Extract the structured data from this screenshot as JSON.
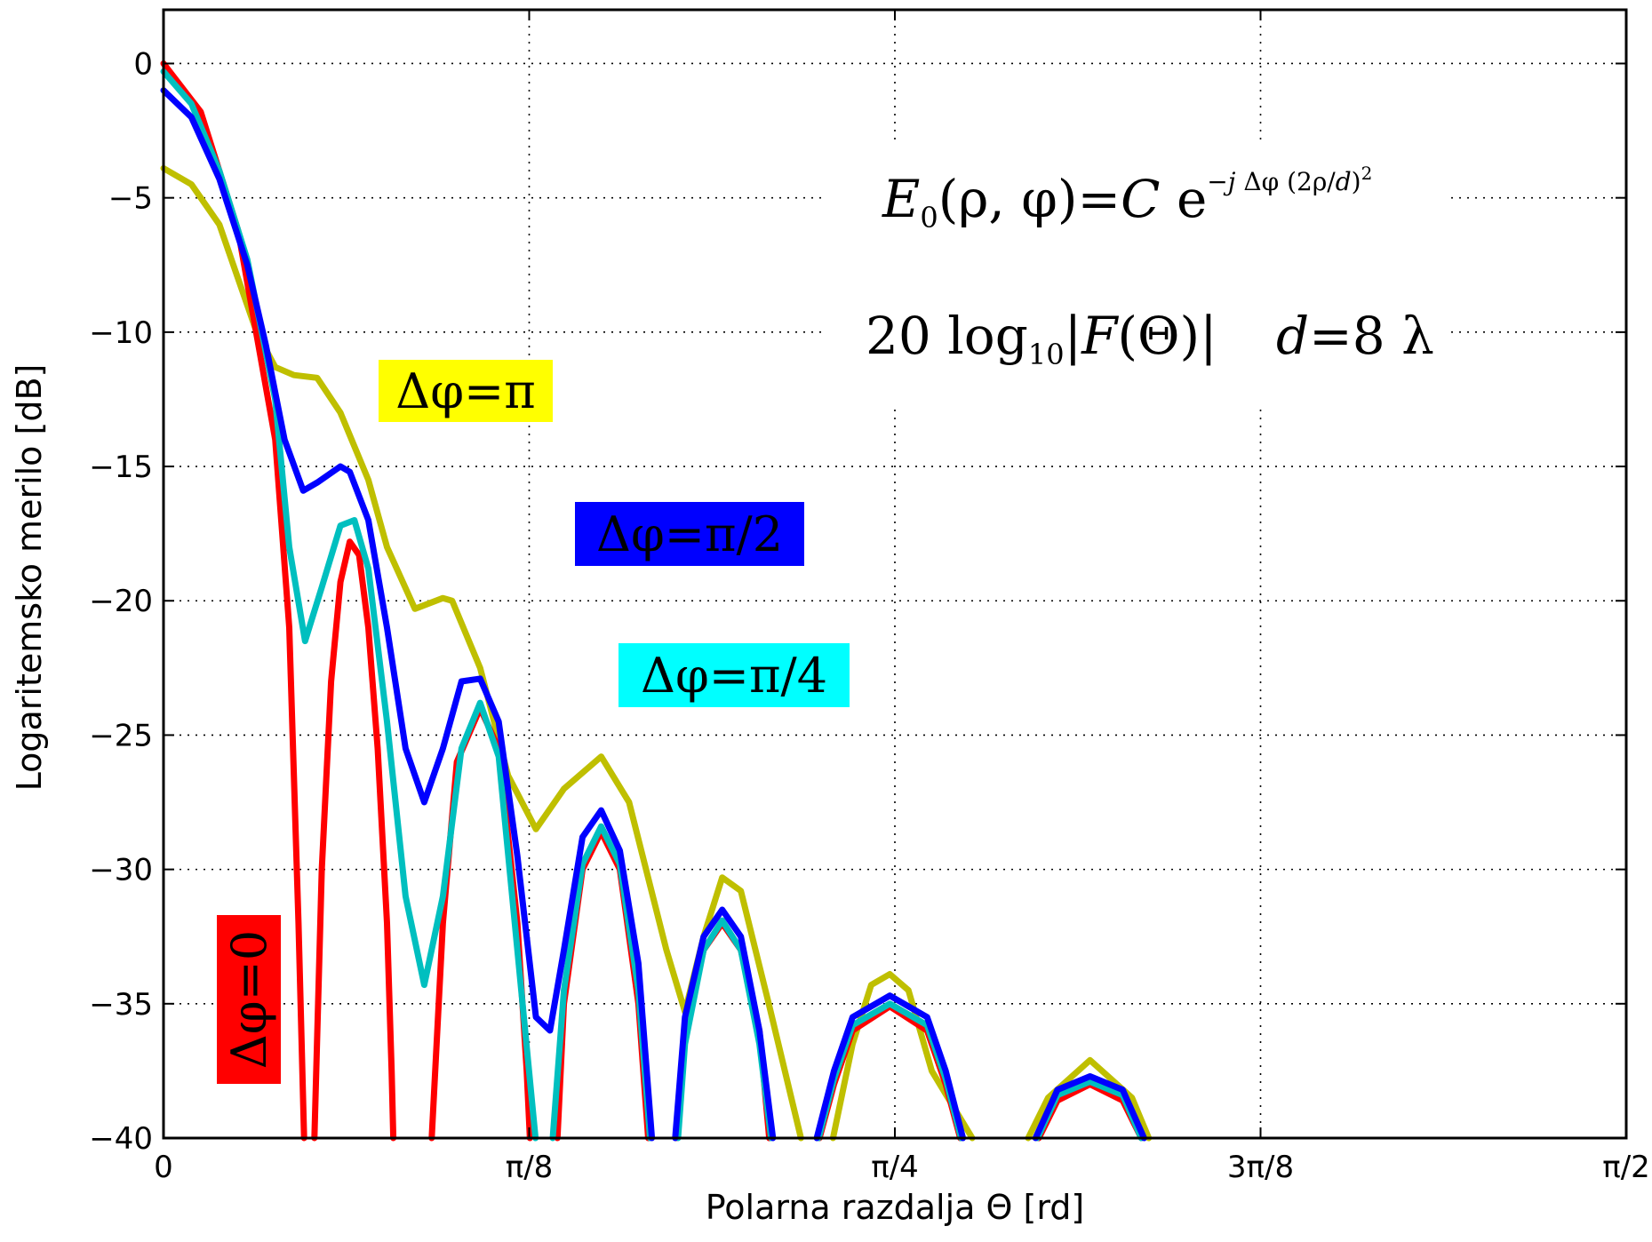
{
  "chart_data": {
    "type": "line",
    "xlabel": "Polarna razdalja Θ [rd]",
    "ylabel": "Logaritemsko merilo [dB]",
    "xlim": [
      0,
      1.5708
    ],
    "ylim": [
      -40,
      2
    ],
    "grid": true,
    "x_ticks": [
      {
        "value": 0,
        "label": "0"
      },
      {
        "value": 0.3927,
        "label": "π/8"
      },
      {
        "value": 0.7854,
        "label": "π/4"
      },
      {
        "value": 1.1781,
        "label": "3π/8"
      },
      {
        "value": 1.5708,
        "label": "π/2"
      }
    ],
    "y_ticks": [
      {
        "value": 0,
        "label": "0"
      },
      {
        "value": -5,
        "label": "−5"
      },
      {
        "value": -10,
        "label": "−10"
      },
      {
        "value": -15,
        "label": "−15"
      },
      {
        "value": -20,
        "label": "−20"
      },
      {
        "value": -25,
        "label": "−25"
      },
      {
        "value": -30,
        "label": "−30"
      },
      {
        "value": -35,
        "label": "−35"
      },
      {
        "value": -40,
        "label": "−40"
      }
    ],
    "formulas": {
      "field": "E₀(ρ, φ) = C e^(−j Δφ (2ρ/d)²)",
      "pattern": "20 log₁₀|F(Θ)|",
      "size": "d = 8 λ"
    },
    "series": [
      {
        "name": "Δφ = 0",
        "color": "#ff0000",
        "label_bg": "#ff0000",
        "label_fg": "#ffffff",
        "points": [
          [
            0.0,
            0.0
          ],
          [
            0.04,
            -1.8
          ],
          [
            0.08,
            -6.2
          ],
          [
            0.12,
            -14.0
          ],
          [
            0.135,
            -21.0
          ],
          [
            0.145,
            -32.0
          ],
          [
            0.151,
            -40.0
          ],
          [
            0.152,
            null
          ],
          [
            0.162,
            -40.0
          ],
          [
            0.17,
            -30.0
          ],
          [
            0.18,
            -23.0
          ],
          [
            0.19,
            -19.3
          ],
          [
            0.2,
            -17.8
          ],
          [
            0.21,
            -18.3
          ],
          [
            0.22,
            -21.0
          ],
          [
            0.23,
            -25.5
          ],
          [
            0.24,
            -32.0
          ],
          [
            0.245,
            -37.5
          ],
          [
            0.2468,
            -40.0
          ],
          [
            0.247,
            null
          ],
          [
            0.288,
            -40.0
          ],
          [
            0.3,
            -32.0
          ],
          [
            0.315,
            -26.0
          ],
          [
            0.34,
            -24.0
          ],
          [
            0.36,
            -25.5
          ],
          [
            0.38,
            -32.0
          ],
          [
            0.39,
            -37.5
          ],
          [
            0.3935,
            -40.0
          ],
          [
            0.394,
            null
          ],
          [
            0.423,
            -40.0
          ],
          [
            0.43,
            -35.0
          ],
          [
            0.45,
            -30.0
          ],
          [
            0.47,
            -28.6
          ],
          [
            0.49,
            -30.0
          ],
          [
            0.51,
            -35.0
          ],
          [
            0.5205,
            -40.0
          ],
          [
            0.521,
            null
          ],
          [
            0.5505,
            -40.0
          ],
          [
            0.56,
            -36.0
          ],
          [
            0.58,
            -33.0
          ],
          [
            0.6,
            -32.0
          ],
          [
            0.62,
            -33.0
          ],
          [
            0.64,
            -36.0
          ],
          [
            0.6505,
            -40.0
          ],
          [
            0.651,
            null
          ],
          [
            0.7045,
            -40.0
          ],
          [
            0.72,
            -38.0
          ],
          [
            0.74,
            -36.0
          ],
          [
            0.78,
            -35.1
          ],
          [
            0.82,
            -36.0
          ],
          [
            0.84,
            -38.0
          ],
          [
            0.8555,
            -40.0
          ],
          [
            0.856,
            null
          ],
          [
            0.94,
            -40.0
          ],
          [
            0.96,
            -38.6
          ],
          [
            0.995,
            -38.0
          ],
          [
            1.03,
            -38.6
          ],
          [
            1.05,
            -40.0
          ]
        ]
      },
      {
        "name": "Δφ = π/4",
        "color": "#00bfbf",
        "label_bg": "#00ffff",
        "label_fg": "#000000",
        "points": [
          [
            0.0,
            -0.3
          ],
          [
            0.03,
            -1.5
          ],
          [
            0.06,
            -4.0
          ],
          [
            0.09,
            -7.3
          ],
          [
            0.12,
            -12.5
          ],
          [
            0.135,
            -18.0
          ],
          [
            0.152,
            -21.5
          ],
          [
            0.17,
            -19.5
          ],
          [
            0.19,
            -17.2
          ],
          [
            0.205,
            -17.0
          ],
          [
            0.22,
            -18.8
          ],
          [
            0.24,
            -24.5
          ],
          [
            0.26,
            -31.0
          ],
          [
            0.28,
            -34.3
          ],
          [
            0.3,
            -31.0
          ],
          [
            0.32,
            -25.5
          ],
          [
            0.34,
            -23.8
          ],
          [
            0.36,
            -25.8
          ],
          [
            0.38,
            -33.0
          ],
          [
            0.3995,
            -40.0
          ],
          [
            0.4,
            null
          ],
          [
            0.418,
            -40.0
          ],
          [
            0.43,
            -34.5
          ],
          [
            0.45,
            -29.8
          ],
          [
            0.47,
            -28.4
          ],
          [
            0.49,
            -29.8
          ],
          [
            0.51,
            -34.5
          ],
          [
            0.5225,
            -40.0
          ],
          [
            0.523,
            null
          ],
          [
            0.5525,
            -40.0
          ],
          [
            0.56,
            -36.5
          ],
          [
            0.58,
            -33.0
          ],
          [
            0.6,
            -31.9
          ],
          [
            0.62,
            -33.0
          ],
          [
            0.64,
            -36.5
          ],
          [
            0.6525,
            -40.0
          ],
          [
            0.653,
            null
          ],
          [
            0.7035,
            -40.0
          ],
          [
            0.72,
            -37.8
          ],
          [
            0.74,
            -35.8
          ],
          [
            0.78,
            -35.0
          ],
          [
            0.82,
            -35.8
          ],
          [
            0.84,
            -37.8
          ],
          [
            0.8565,
            -40.0
          ],
          [
            0.857,
            null
          ],
          [
            0.9385,
            -40.0
          ],
          [
            0.96,
            -38.4
          ],
          [
            0.995,
            -37.9
          ],
          [
            1.03,
            -38.4
          ],
          [
            1.05,
            -40.0
          ]
        ]
      },
      {
        "name": "Δφ = π/2",
        "color": "#0000ff",
        "label_bg": "#0000ff",
        "label_fg": "#ffffff",
        "points": [
          [
            0.0,
            -1.0
          ],
          [
            0.03,
            -2.0
          ],
          [
            0.06,
            -4.3
          ],
          [
            0.09,
            -7.5
          ],
          [
            0.11,
            -10.5
          ],
          [
            0.13,
            -14.0
          ],
          [
            0.15,
            -15.9
          ],
          [
            0.165,
            -15.6
          ],
          [
            0.19,
            -15.0
          ],
          [
            0.2,
            -15.2
          ],
          [
            0.22,
            -17.0
          ],
          [
            0.24,
            -21.0
          ],
          [
            0.26,
            -25.5
          ],
          [
            0.28,
            -27.5
          ],
          [
            0.3,
            -25.5
          ],
          [
            0.32,
            -23.0
          ],
          [
            0.34,
            -22.9
          ],
          [
            0.36,
            -24.5
          ],
          [
            0.38,
            -29.5
          ],
          [
            0.4,
            -35.5
          ],
          [
            0.415,
            -36.0
          ],
          [
            0.43,
            -33.0
          ],
          [
            0.45,
            -28.8
          ],
          [
            0.47,
            -27.8
          ],
          [
            0.49,
            -29.3
          ],
          [
            0.51,
            -33.5
          ],
          [
            0.5245,
            -40.0
          ],
          [
            0.525,
            null
          ],
          [
            0.5495,
            -40.0
          ],
          [
            0.56,
            -35.5
          ],
          [
            0.58,
            -32.5
          ],
          [
            0.6,
            -31.5
          ],
          [
            0.62,
            -32.5
          ],
          [
            0.64,
            -36.0
          ],
          [
            0.6545,
            -40.0
          ],
          [
            0.655,
            null
          ],
          [
            0.7015,
            -40.0
          ],
          [
            0.72,
            -37.5
          ],
          [
            0.74,
            -35.5
          ],
          [
            0.78,
            -34.7
          ],
          [
            0.82,
            -35.5
          ],
          [
            0.84,
            -37.5
          ],
          [
            0.8585,
            -40.0
          ],
          [
            0.859,
            null
          ],
          [
            0.9365,
            -40.0
          ],
          [
            0.96,
            -38.2
          ],
          [
            0.995,
            -37.7
          ],
          [
            1.03,
            -38.2
          ],
          [
            1.053,
            -40.0
          ]
        ]
      },
      {
        "name": "Δφ = π",
        "color": "#bfbf00",
        "label_bg": "#ffff00",
        "label_fg": "#000000",
        "points": [
          [
            0.0,
            -3.9
          ],
          [
            0.03,
            -4.5
          ],
          [
            0.06,
            -6.0
          ],
          [
            0.08,
            -8.0
          ],
          [
            0.1,
            -10.0
          ],
          [
            0.12,
            -11.3
          ],
          [
            0.14,
            -11.6
          ],
          [
            0.165,
            -11.7
          ],
          [
            0.19,
            -13.0
          ],
          [
            0.22,
            -15.5
          ],
          [
            0.24,
            -18.0
          ],
          [
            0.27,
            -20.3
          ],
          [
            0.3,
            -19.9
          ],
          [
            0.31,
            -20.0
          ],
          [
            0.34,
            -22.5
          ],
          [
            0.37,
            -26.5
          ],
          [
            0.4,
            -28.5
          ],
          [
            0.43,
            -27.0
          ],
          [
            0.47,
            -25.8
          ],
          [
            0.5,
            -27.5
          ],
          [
            0.54,
            -33.0
          ],
          [
            0.56,
            -35.3
          ],
          [
            0.58,
            -32.5
          ],
          [
            0.6,
            -30.3
          ],
          [
            0.62,
            -30.8
          ],
          [
            0.65,
            -35.0
          ],
          [
            0.6845,
            -40.0
          ],
          [
            0.685,
            null
          ],
          [
            0.719,
            -40.0
          ],
          [
            0.74,
            -36.5
          ],
          [
            0.76,
            -34.3
          ],
          [
            0.78,
            -33.9
          ],
          [
            0.8,
            -34.5
          ],
          [
            0.825,
            -37.5
          ],
          [
            0.8685,
            -40.0
          ],
          [
            0.869,
            null
          ],
          [
            0.9285,
            -40.0
          ],
          [
            0.95,
            -38.5
          ],
          [
            0.995,
            -37.1
          ],
          [
            1.04,
            -38.5
          ],
          [
            1.058,
            -40.0
          ]
        ]
      }
    ]
  }
}
